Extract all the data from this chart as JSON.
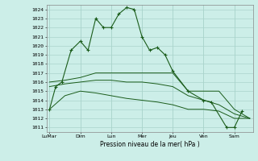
{
  "background_color": "#cceee8",
  "grid_color": "#aad4cc",
  "line_color": "#1a5c1a",
  "xlabel": "Pression niveau de la mer( hPa )",
  "ylim": [
    1010.5,
    1024.5
  ],
  "yticks": [
    1011,
    1012,
    1013,
    1014,
    1015,
    1016,
    1017,
    1018,
    1019,
    1020,
    1021,
    1022,
    1023,
    1024
  ],
  "x_labels": [
    "LuMar",
    "Dim",
    "Lun",
    "Mer",
    "Jeu",
    "Ven",
    "Sam"
  ],
  "x_positions": [
    0,
    2,
    4,
    6,
    8,
    10,
    12
  ],
  "xlim": [
    -0.2,
    13.2
  ],
  "series1_x": [
    0,
    0.4,
    0.8,
    1.4,
    2.0,
    2.5,
    3.0,
    3.5,
    4.0,
    4.5,
    5.0,
    5.5,
    6.0,
    6.5,
    7.0,
    7.5,
    8.0,
    9.0,
    10.0,
    10.5,
    11.5,
    12.0,
    12.5
  ],
  "series1_y": [
    1013.0,
    1015.5,
    1016.0,
    1019.5,
    1020.5,
    1019.5,
    1023.0,
    1022.0,
    1022.0,
    1023.5,
    1024.2,
    1024.0,
    1021.0,
    1019.5,
    1019.8,
    1019.0,
    1017.2,
    1015.0,
    1014.0,
    1013.8,
    1011.0,
    1011.0,
    1012.8
  ],
  "series2_x": [
    0,
    1.0,
    2.0,
    3.0,
    4.0,
    5.0,
    6.0,
    7.0,
    8.0,
    9.0,
    10.0,
    11.0,
    12.0,
    13.0
  ],
  "series2_y": [
    1016.0,
    1016.2,
    1016.5,
    1017.0,
    1017.0,
    1017.0,
    1017.0,
    1017.0,
    1017.0,
    1015.0,
    1015.0,
    1015.0,
    1013.0,
    1012.0
  ],
  "series3_x": [
    0,
    1.0,
    2.0,
    3.0,
    4.0,
    5.0,
    6.0,
    7.0,
    8.0,
    9.0,
    10.0,
    11.0,
    12.0,
    13.0
  ],
  "series3_y": [
    1015.5,
    1015.8,
    1016.0,
    1016.2,
    1016.2,
    1016.0,
    1016.0,
    1015.8,
    1015.5,
    1014.5,
    1014.0,
    1013.5,
    1012.5,
    1012.0
  ],
  "series4_x": [
    0,
    1.0,
    2.0,
    3.0,
    4.0,
    5.0,
    6.0,
    7.0,
    8.0,
    9.0,
    10.0,
    11.0,
    12.0,
    13.0
  ],
  "series4_y": [
    1013.0,
    1014.5,
    1015.0,
    1014.8,
    1014.5,
    1014.2,
    1014.0,
    1013.8,
    1013.5,
    1013.0,
    1013.0,
    1012.8,
    1012.0,
    1012.0
  ]
}
